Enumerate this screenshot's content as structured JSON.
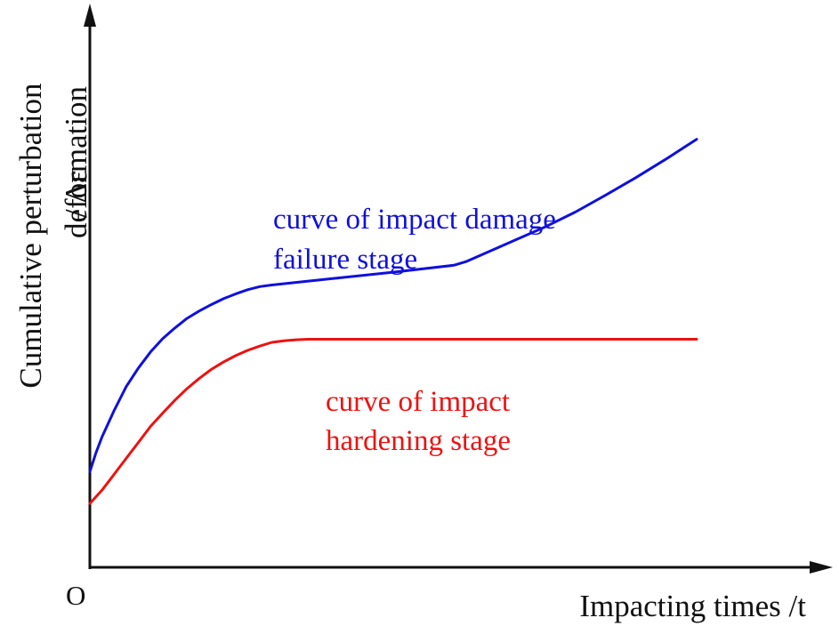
{
  "chart_data": {
    "type": "line",
    "xlabel": "Impacting times /t",
    "ylabel_line1": "Cumulative perturbation",
    "ylabel_line2": "deformation",
    "ylabel_symbol": "/ Δε",
    "origin_label": "O",
    "xlim": [
      0,
      100
    ],
    "ylim": [
      0,
      100
    ],
    "grid": false,
    "series": [
      {
        "name": "curve of impact damage failure stage",
        "label_lines": [
          "curve of impact damage",
          "failure stage"
        ],
        "color": "#1010dd",
        "x": [
          0,
          1,
          2,
          4,
          6,
          8,
          10,
          12,
          14,
          16,
          18,
          20,
          22,
          24,
          26,
          28,
          30,
          40,
          50,
          60,
          62,
          66,
          70,
          75,
          80,
          85,
          90,
          95,
          100
        ],
        "y": [
          18,
          21.5,
          24.5,
          29.5,
          34,
          37.5,
          40.5,
          43,
          45,
          46.8,
          48.2,
          49.4,
          50.5,
          51.4,
          52.2,
          52.8,
          53.1,
          54.3,
          55.5,
          56.8,
          57.5,
          59.5,
          61.5,
          64,
          66.8,
          70,
          73.3,
          76.8,
          80.5
        ]
      },
      {
        "name": "curve of impact hardening stage",
        "label_lines": [
          "curve of impact",
          "hardening stage"
        ],
        "color": "#ee1111",
        "x": [
          0,
          2,
          4,
          6,
          8,
          10,
          12,
          14,
          16,
          18,
          20,
          22,
          24,
          26,
          28,
          30,
          32,
          34,
          36,
          38,
          40,
          50,
          60,
          70,
          80,
          90,
          100
        ],
        "y": [
          12,
          14.5,
          17.5,
          20.5,
          23.5,
          26.5,
          29,
          31.4,
          33.6,
          35.5,
          37.2,
          38.6,
          39.8,
          40.8,
          41.6,
          42.3,
          42.6,
          42.8,
          42.9,
          42.9,
          42.9,
          42.9,
          42.9,
          42.9,
          42.9,
          42.9,
          42.9
        ]
      }
    ]
  }
}
